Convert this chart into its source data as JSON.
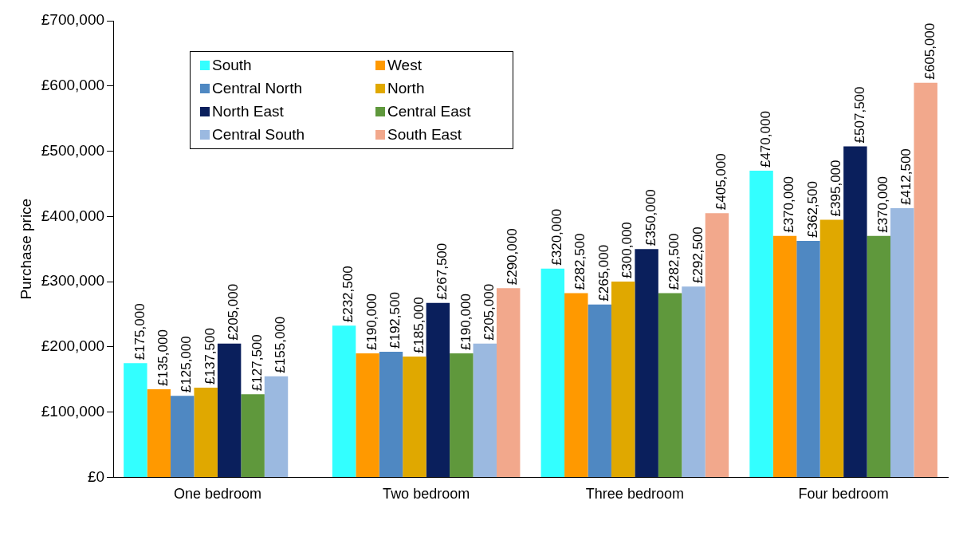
{
  "chart_data": {
    "type": "bar",
    "ylabel": "Purchase price",
    "categories": [
      "One bedroom",
      "Two bedroom",
      "Three bedroom",
      "Four bedroom"
    ],
    "series": [
      {
        "name": "South",
        "color": "#33ffff",
        "values": [
          175000,
          232500,
          320000,
          470000
        ],
        "value_labels": [
          "£175,000",
          "£232,500",
          "£320,000",
          "£470,000"
        ]
      },
      {
        "name": "West",
        "color": "#ff9900",
        "values": [
          135000,
          190000,
          282500,
          370000
        ],
        "value_labels": [
          "£135,000",
          "£190,000",
          "£282,500",
          "£370,000"
        ]
      },
      {
        "name": "Central North",
        "color": "#4f88c2",
        "values": [
          125000,
          192500,
          265000,
          362500
        ],
        "value_labels": [
          "£125,000",
          "£192,500",
          "£265,000",
          "£362,500"
        ]
      },
      {
        "name": "North",
        "color": "#e0a800",
        "values": [
          137500,
          185000,
          300000,
          395000
        ],
        "value_labels": [
          "£137,500",
          "£185,000",
          "£300,000",
          "£395,000"
        ]
      },
      {
        "name": "North East",
        "color": "#0a1f5c",
        "values": [
          205000,
          267500,
          350000,
          507500
        ],
        "value_labels": [
          "£205,000",
          "£267,500",
          "£350,000",
          "£507,500"
        ]
      },
      {
        "name": "Central East",
        "color": "#5f983c",
        "values": [
          127500,
          190000,
          282500,
          370000
        ],
        "value_labels": [
          "£127,500",
          "£190,000",
          "£282,500",
          "£370,000"
        ]
      },
      {
        "name": "Central South",
        "color": "#9bb9e0",
        "values": [
          155000,
          205000,
          292500,
          412500
        ],
        "value_labels": [
          "£155,000",
          "£205,000",
          "£292,500",
          "£412,500"
        ]
      },
      {
        "name": "South East",
        "color": "#f2a88c",
        "values": [
          null,
          290000,
          405000,
          605000
        ],
        "value_labels": [
          null,
          "£290,000",
          "£405,000",
          "£605,000"
        ]
      }
    ],
    "ylim": [
      0,
      700000
    ],
    "yticks": [
      {
        "value": 0,
        "label": "£0"
      },
      {
        "value": 100000,
        "label": "£100,000"
      },
      {
        "value": 200000,
        "label": "£200,000"
      },
      {
        "value": 300000,
        "label": "£300,000"
      },
      {
        "value": 400000,
        "label": "£400,000"
      },
      {
        "value": 500000,
        "label": "£500,000"
      },
      {
        "value": 600000,
        "label": "£600,000"
      },
      {
        "value": 700000,
        "label": "£700,000"
      }
    ],
    "grid": false,
    "legend": "top left"
  }
}
